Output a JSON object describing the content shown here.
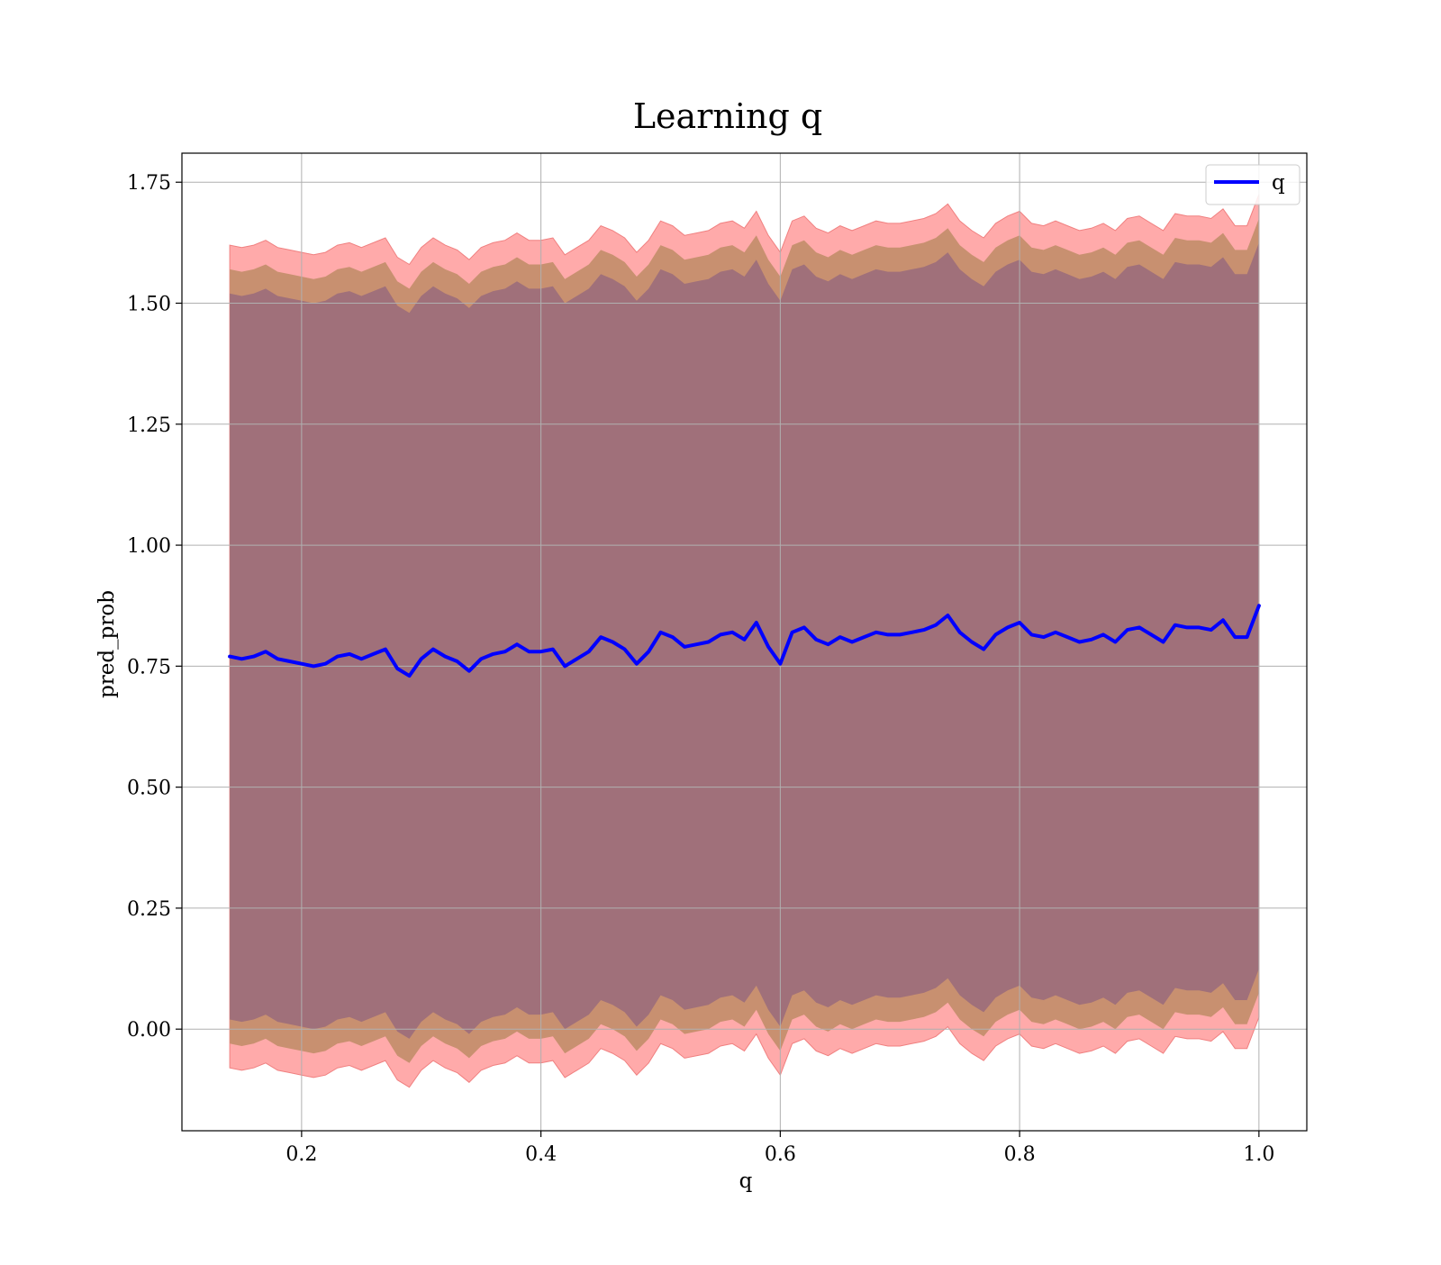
{
  "chart_data": {
    "type": "line",
    "title": "Learning q",
    "xlabel": "q",
    "ylabel": "pred_prob",
    "xlim": [
      0.1,
      1.04
    ],
    "ylim": [
      -0.21,
      1.81
    ],
    "x_ticks": [
      0.2,
      0.4,
      0.6,
      0.8,
      1.0
    ],
    "x_tick_labels": [
      "0.2",
      "0.4",
      "0.6",
      "0.8",
      "1.0"
    ],
    "y_ticks": [
      0.0,
      0.25,
      0.5,
      0.75,
      1.0,
      1.25,
      1.5,
      1.75
    ],
    "y_tick_labels": [
      "0.00",
      "0.25",
      "0.50",
      "0.75",
      "1.00",
      "1.25",
      "1.50",
      "1.75"
    ],
    "grid": true,
    "legend": {
      "position": "top-right",
      "entries": [
        {
          "label": "q",
          "color": "#0000ff"
        }
      ]
    },
    "colors": {
      "line": "#0000ff",
      "band_inner": "#a0707a",
      "band_middle": "#c89070",
      "band_outer": "#ffaaaa",
      "band_outer_edge": "#f08080",
      "grid": "#b0b0b0"
    },
    "band_half_widths": [
      0.75,
      0.8,
      0.85
    ],
    "series": [
      {
        "name": "q",
        "x": [
          0.14,
          0.15,
          0.16,
          0.17,
          0.18,
          0.19,
          0.2,
          0.21,
          0.22,
          0.23,
          0.24,
          0.25,
          0.26,
          0.27,
          0.28,
          0.29,
          0.3,
          0.31,
          0.32,
          0.33,
          0.34,
          0.35,
          0.36,
          0.37,
          0.38,
          0.39,
          0.4,
          0.41,
          0.42,
          0.43,
          0.44,
          0.45,
          0.46,
          0.47,
          0.48,
          0.49,
          0.5,
          0.51,
          0.52,
          0.53,
          0.54,
          0.55,
          0.56,
          0.57,
          0.58,
          0.59,
          0.6,
          0.61,
          0.62,
          0.63,
          0.64,
          0.65,
          0.66,
          0.67,
          0.68,
          0.69,
          0.7,
          0.71,
          0.72,
          0.73,
          0.74,
          0.75,
          0.76,
          0.77,
          0.78,
          0.79,
          0.8,
          0.81,
          0.82,
          0.83,
          0.84,
          0.85,
          0.86,
          0.87,
          0.88,
          0.89,
          0.9,
          0.91,
          0.92,
          0.93,
          0.94,
          0.95,
          0.96,
          0.97,
          0.98,
          0.99,
          1.0
        ],
        "values": [
          0.77,
          0.765,
          0.77,
          0.78,
          0.765,
          0.76,
          0.755,
          0.75,
          0.755,
          0.77,
          0.775,
          0.765,
          0.775,
          0.785,
          0.745,
          0.73,
          0.765,
          0.785,
          0.77,
          0.76,
          0.74,
          0.765,
          0.775,
          0.78,
          0.795,
          0.78,
          0.78,
          0.785,
          0.75,
          0.765,
          0.78,
          0.81,
          0.8,
          0.785,
          0.755,
          0.78,
          0.82,
          0.81,
          0.79,
          0.795,
          0.8,
          0.815,
          0.82,
          0.805,
          0.84,
          0.79,
          0.755,
          0.82,
          0.83,
          0.805,
          0.795,
          0.81,
          0.8,
          0.81,
          0.82,
          0.815,
          0.815,
          0.82,
          0.825,
          0.835,
          0.855,
          0.82,
          0.8,
          0.785,
          0.815,
          0.83,
          0.84,
          0.815,
          0.81,
          0.82,
          0.81,
          0.8,
          0.805,
          0.815,
          0.8,
          0.825,
          0.83,
          0.815,
          0.8,
          0.835,
          0.83,
          0.83,
          0.825,
          0.845,
          0.81,
          0.81,
          0.875
        ]
      }
    ]
  }
}
